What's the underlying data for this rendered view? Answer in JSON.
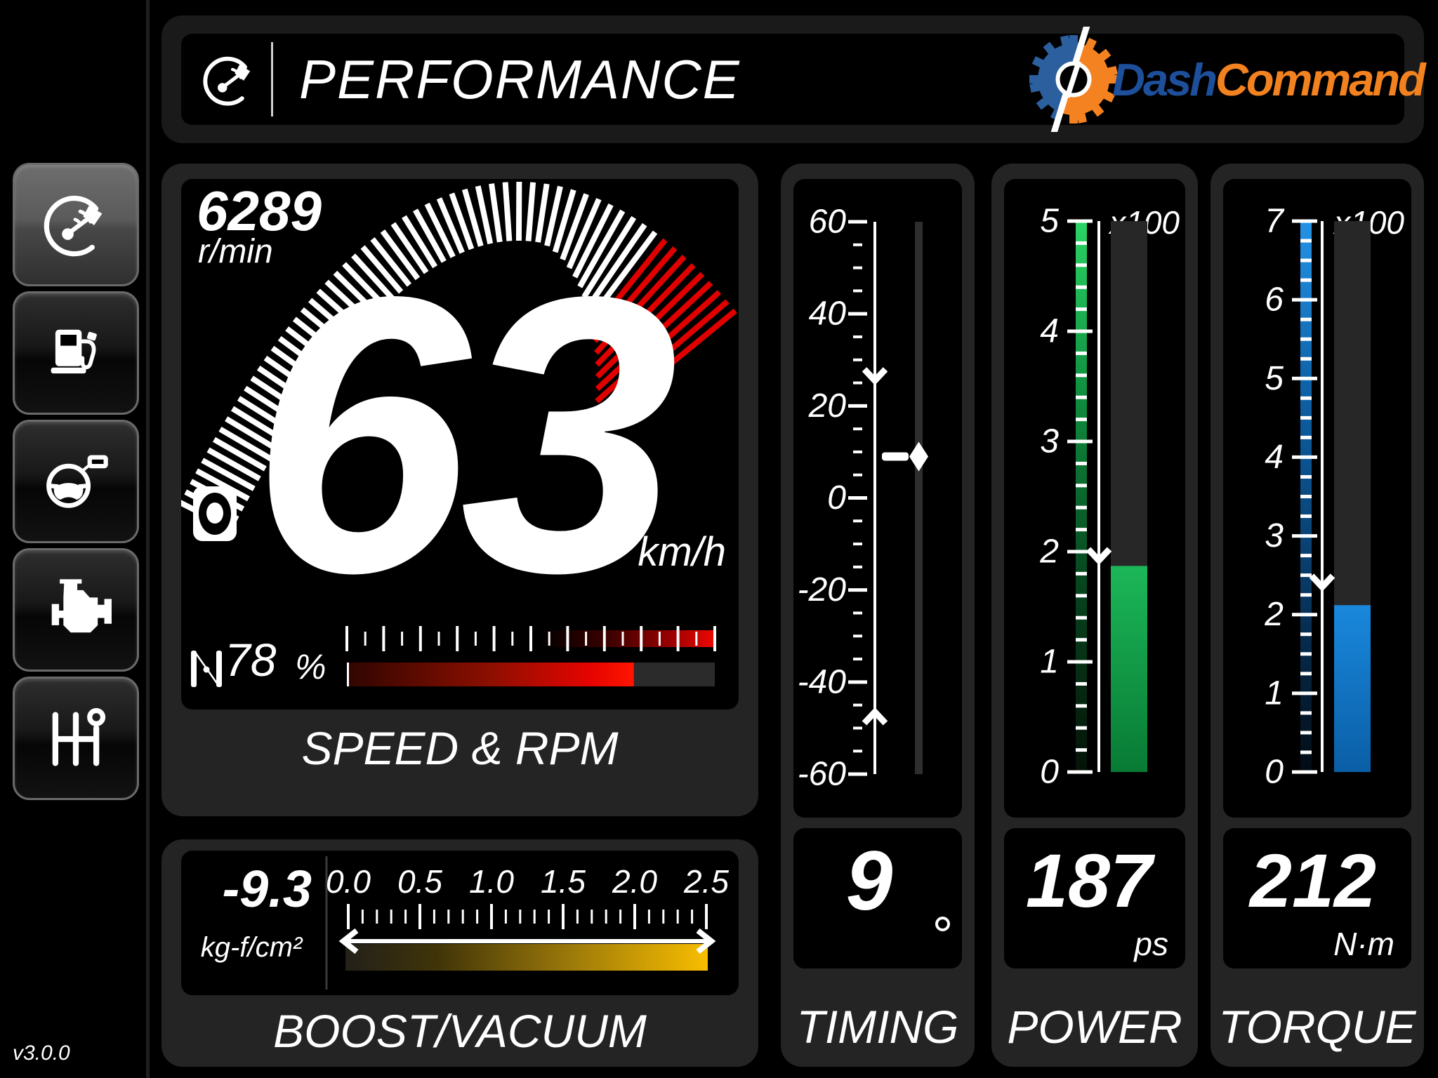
{
  "app": {
    "version": "v3.0.0"
  },
  "header": {
    "title": "PERFORMANCE",
    "logo": {
      "dash": "Dash",
      "command": "Command"
    }
  },
  "sidebar": {
    "items": [
      {
        "id": "performance",
        "icon": "gauge-icon",
        "selected": true
      },
      {
        "id": "fuel",
        "icon": "fuel-pump-icon",
        "selected": false
      },
      {
        "id": "vehicle",
        "icon": "steering-wheel-icon",
        "selected": false
      },
      {
        "id": "engine",
        "icon": "engine-icon",
        "selected": false
      },
      {
        "id": "transmission",
        "icon": "gear-shifter-icon",
        "selected": false
      }
    ]
  },
  "speed_rpm": {
    "label": "SPEED & RPM",
    "rpm": {
      "value": "6289",
      "unit": "r/min",
      "bars": 60,
      "red_from_bar": 51
    },
    "speed": {
      "value": "63",
      "unit": "km/h"
    },
    "gear_indicator": "N",
    "throttle": {
      "value": "78",
      "unit": "%",
      "percent": 78,
      "scale": {
        "min": 0,
        "max": 100,
        "major_step": 10,
        "minor_step": 5
      },
      "red_zone_from_percent": 52
    }
  },
  "boost": {
    "label": "BOOST/VACUUM",
    "value": "-9.3",
    "unit": "kg-f/cm²",
    "scale": {
      "min": 0,
      "max": 2.5,
      "major_step": 0.5,
      "minor_step": 0.1,
      "tick_labels": [
        "0.0",
        "0.5",
        "1.0",
        "1.5",
        "2.0",
        "2.5"
      ]
    }
  },
  "timing": {
    "label": "TIMING",
    "value": "9",
    "unit": "°",
    "scale": {
      "min": -60,
      "max": 60,
      "major_step": 20,
      "minor_step": 5,
      "tick_labels": [
        "60",
        "40",
        "20",
        "0",
        "-20",
        "-40",
        "-60"
      ]
    },
    "pointer_value": 9,
    "max_marker_value": 25.5,
    "min_marker_value": -46.5
  },
  "power": {
    "label": "POWER",
    "value": "187",
    "unit": "ps",
    "multiplier": "x100",
    "scale": {
      "min": 0,
      "max": 5,
      "major_step": 1,
      "minor_step": 0.2,
      "tick_labels": [
        "5",
        "4",
        "3",
        "2",
        "1",
        "0"
      ]
    },
    "bar_value": 1.87,
    "peak_marker_value": 1.92,
    "colors": {
      "strip_top": "#2bd465",
      "strip_mid": "#109140",
      "strip_low": "#07471f",
      "strip_bottom": "#041208",
      "fill_top": "#1cb758",
      "fill_bottom": "#087a34"
    }
  },
  "torque": {
    "label": "TORQUE",
    "value": "212",
    "unit": "N·m",
    "multiplier": "x100",
    "scale": {
      "min": 0,
      "max": 7,
      "major_step": 1,
      "minor_step": 0.25,
      "tick_labels": [
        "7",
        "6",
        "5",
        "4",
        "3",
        "2",
        "1",
        "0"
      ]
    },
    "bar_value": 2.12,
    "peak_marker_value": 2.35,
    "colors": {
      "strip_top": "#2493e6",
      "strip_mid": "#0e62a8",
      "strip_low": "#093a66",
      "strip_bottom": "#020b14",
      "fill_top": "#1a88dc",
      "fill_bottom": "#0a5ea6"
    }
  },
  "colors": {
    "card_bg": "#242424",
    "accent_red": "#e10000",
    "gold": "#f8be00",
    "logo_blue": "#1d4f9b",
    "logo_orange": "#f28220"
  }
}
